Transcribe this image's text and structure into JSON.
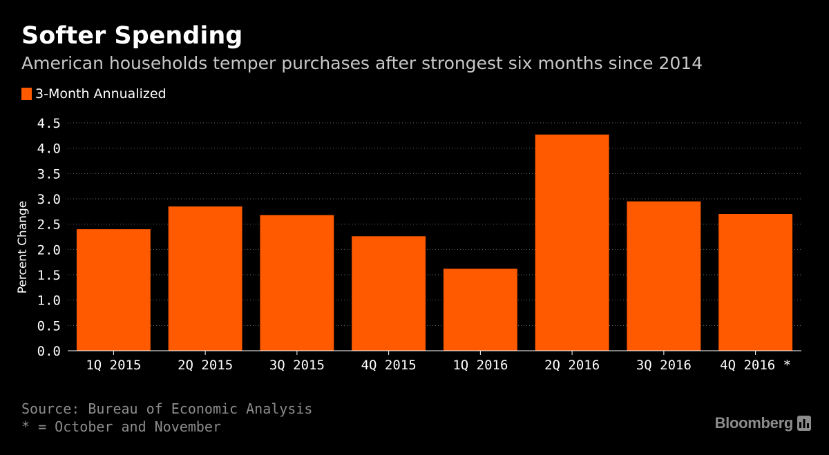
{
  "chart_data": {
    "type": "bar",
    "title": "Softer Spending",
    "subtitle": "American households temper purchases after strongest six months since 2014",
    "ylabel": "Percent Change",
    "xlabel": "",
    "categories": [
      "1Q 2015",
      "2Q 2015",
      "3Q 2015",
      "4Q 2015",
      "1Q 2016",
      "2Q 2016",
      "3Q 2016",
      "4Q 2016 *"
    ],
    "series": [
      {
        "name": "3-Month Annualized",
        "color": "#ff5a00",
        "values": [
          2.4,
          2.85,
          2.68,
          2.26,
          1.62,
          4.27,
          2.95,
          2.7
        ]
      }
    ],
    "ylim": [
      0,
      4.5
    ],
    "yticks": [
      "0.0",
      "0.5",
      "1.0",
      "1.5",
      "2.0",
      "2.5",
      "3.0",
      "3.5",
      "4.0",
      "4.5"
    ],
    "grid": true,
    "legend_position": "top-left"
  },
  "footer": {
    "source": "Source: Bureau of Economic Analysis",
    "note": "* = October and November"
  },
  "brand": {
    "name": "Bloomberg",
    "icon": "bar-chart-icon"
  },
  "colors": {
    "background": "#000000",
    "bar": "#ff5a00",
    "grid": "#6e6e6e",
    "muted_text": "#8c8c8c"
  }
}
